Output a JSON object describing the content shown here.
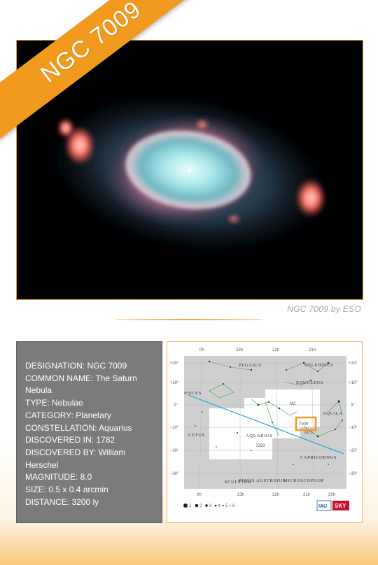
{
  "banner": {
    "title": "NGC 7009"
  },
  "photo": {
    "credit": "NGC 7009 by ESO"
  },
  "info": {
    "lines": [
      "DESIGNATION: NGC 7009",
      "COMMON NAME: The Saturn Nebula",
      "TYPE: Nebulae",
      "CATEGORY: Planetary",
      "CONSTELLATION: Aquarius",
      "DISCOVERED IN: 1782",
      "DISCOVERED BY: William Herschel",
      "MAGNITUDE: 8.0",
      "SIZE: 0.5 x 0.4 arcmin",
      "DISTANCE: 3200 ly"
    ]
  },
  "starmap": {
    "ra_top": [
      "0h",
      "23h",
      "22h",
      "21h"
    ],
    "ra_bottom": [
      "0h",
      "23h",
      "22h",
      "21h",
      "20h"
    ],
    "dec_left": [
      "+20°",
      "+10°",
      "0°",
      "−10°",
      "−20°",
      "−30°"
    ],
    "dec_right": [
      "+20°",
      "+10°",
      "0°",
      "−10°",
      "−20°",
      "−30°"
    ],
    "constellations": {
      "pegasus": "PEGASUS",
      "delphinus": "DELPHINUS",
      "equuleus": "EQUULEUS",
      "pisces": "PISCES",
      "aquila": "AQUILA",
      "cetus": "CETUS",
      "aquarius": "AQUARIUS",
      "capricornus": "CAPRICORNUS",
      "sculptor": "SCULPTOR",
      "piscis_austrinus": "PISCIS AUSTRINUS",
      "microscopium": "MICROSCOPIUM"
    },
    "objects": {
      "m2": "M2",
      "m72": "M72",
      "ngc7009": "7009",
      "ngc7293": "7293"
    },
    "magnitude_legend": [
      "1",
      "2",
      "3",
      "4",
      "5",
      "6"
    ],
    "logos": {
      "iau": "IAU",
      "sky": "SKY"
    },
    "highlight_color": "#f29a1d",
    "ecliptic_color": "#1da1dc"
  },
  "colors": {
    "accent": "#f29a1d",
    "info_bg": "#7b7b7b"
  }
}
